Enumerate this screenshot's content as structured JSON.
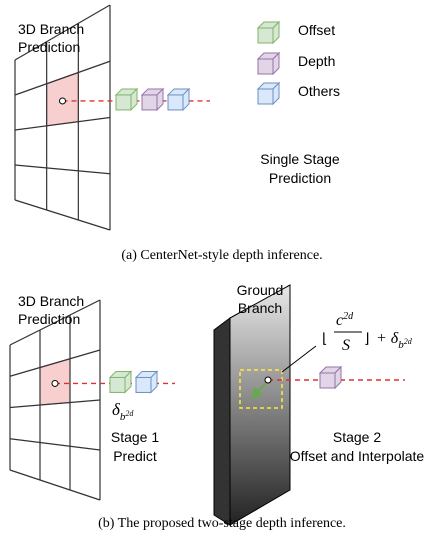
{
  "top": {
    "branch_label": [
      "3D Branch",
      "Prediction"
    ],
    "legend": [
      "Offset",
      "Depth",
      "Others"
    ],
    "stage_label": [
      "Single Stage",
      "Prediction"
    ],
    "caption": "(a) CenterNet-style depth inference."
  },
  "bottom": {
    "branch_label": [
      "3D Branch",
      "Prediction"
    ],
    "ground_label": [
      "Ground",
      "Branch"
    ],
    "offset_symbol": {
      "base": "δ",
      "sub": "b",
      "sup": "2d"
    },
    "formula": {
      "left": "⌊",
      "numerator": "c",
      "numerator_sup": "2d",
      "denominator": "S",
      "right": "⌋",
      "plus": "+ δ",
      "sub": "b",
      "sub_sup": "2d"
    },
    "stage1_label": [
      "Stage 1",
      "Predict"
    ],
    "stage2_label": [
      "Stage 2",
      "Offset and Interpolate"
    ],
    "caption": "(b) The proposed two-stage depth inference."
  }
}
